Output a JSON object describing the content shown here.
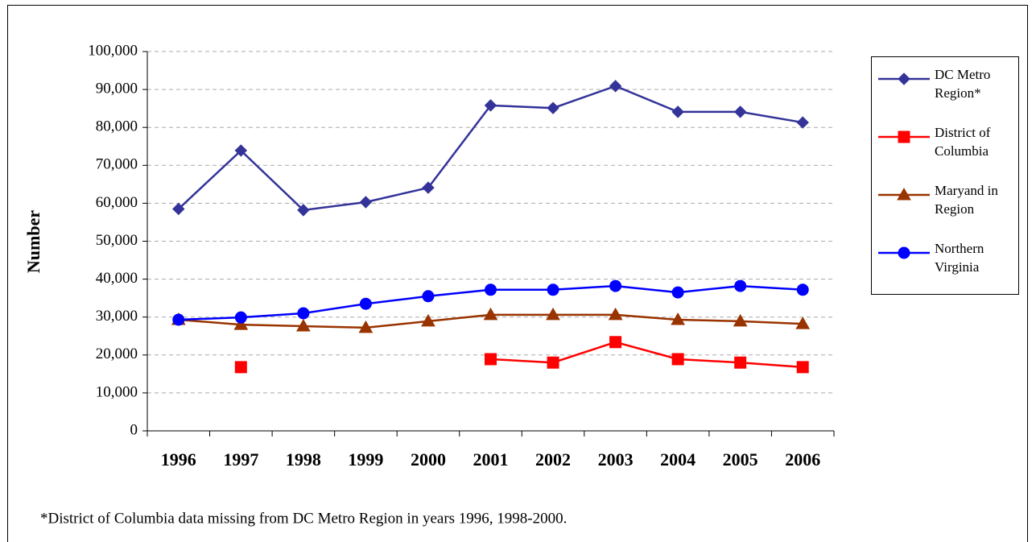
{
  "chart_data": {
    "type": "line",
    "y_label": "Number",
    "footnote": "*District of Columbia data missing from DC Metro Region in years 1996, 1998-2000.",
    "categories": [
      "1996",
      "1997",
      "1998",
      "1999",
      "2000",
      "2001",
      "2002",
      "2003",
      "2004",
      "2005",
      "2006"
    ],
    "series": [
      {
        "name": "DC Metro Region*",
        "color": "#333399",
        "marker": "diamond",
        "values": [
          58500,
          73900,
          58200,
          60300,
          64100,
          85800,
          85100,
          90900,
          84100,
          84100,
          81300
        ]
      },
      {
        "name": "District of Columbia",
        "color": "#ff0000",
        "marker": "square",
        "values": [
          null,
          16800,
          null,
          null,
          null,
          18900,
          18000,
          23400,
          18900,
          18000,
          16800
        ]
      },
      {
        "name": "Maryand in Region",
        "color": "#993300",
        "marker": "triangle",
        "values": [
          29300,
          28000,
          27600,
          27200,
          28900,
          30600,
          30600,
          30600,
          29300,
          28900,
          28200
        ]
      },
      {
        "name": "Northern Virginia",
        "color": "#0000ff",
        "marker": "circle",
        "values": [
          29300,
          29900,
          31000,
          33500,
          35500,
          37200,
          37200,
          38200,
          36500,
          38200,
          37200
        ]
      }
    ],
    "ylim": [
      0,
      100000
    ],
    "yticks": [
      0,
      {
        "value": 10000,
        "label": "10,000"
      },
      {
        "value": 20000,
        "label": "20,000"
      },
      {
        "value": 30000,
        "label": "30,000"
      },
      {
        "value": 40000,
        "label": "40,000"
      },
      {
        "value": 50000,
        "label": "50,000"
      },
      {
        "value": 60000,
        "label": "60,000"
      },
      {
        "value": 70000,
        "label": "70,000"
      },
      {
        "value": 80000,
        "label": "80,000"
      },
      {
        "value": 90000,
        "label": "90,000"
      },
      {
        "value": 100000,
        "label": "100,000"
      }
    ],
    "grid": true,
    "legend": "right"
  }
}
